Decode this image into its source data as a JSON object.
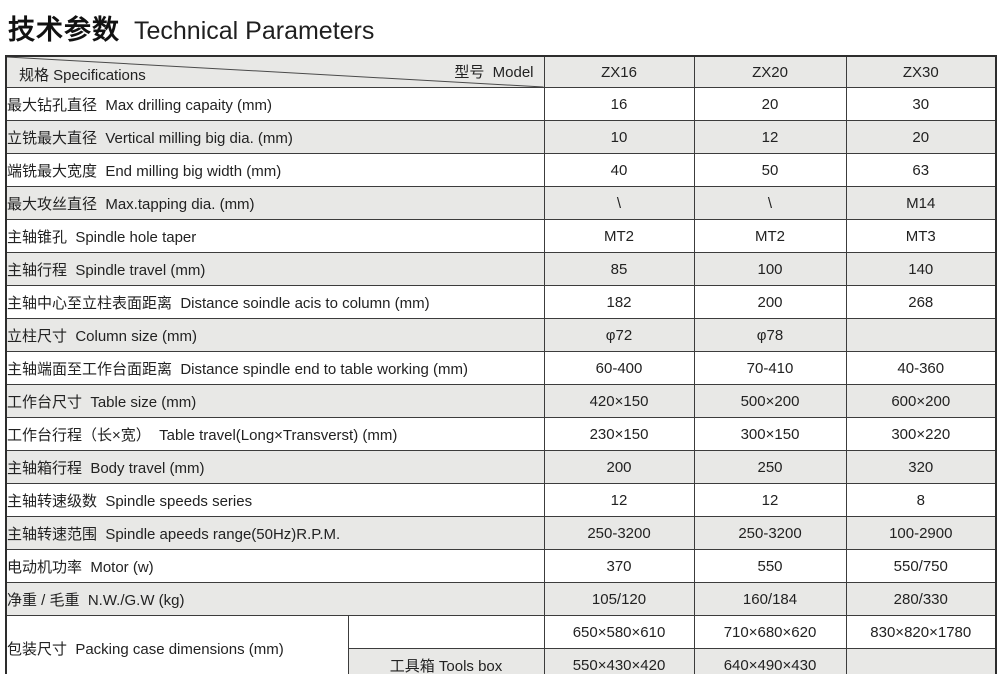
{
  "title": {
    "zh": "技术参数",
    "en": "Technical Parameters"
  },
  "table": {
    "corner": {
      "bottom_left": "规格 Specifications",
      "top_right": "型号  Model"
    },
    "models": [
      "ZX16",
      "ZX20",
      "ZX30"
    ],
    "rows": [
      {
        "label": "最大钻孔直径  Max drilling capaity (mm)",
        "values": [
          "16",
          "20",
          "30"
        ]
      },
      {
        "label": "立铣最大直径  Vertical milling big dia. (mm)",
        "values": [
          "10",
          "12",
          "20"
        ]
      },
      {
        "label": "端铣最大宽度  End milling big width (mm)",
        "values": [
          "40",
          "50",
          "63"
        ]
      },
      {
        "label": "最大攻丝直径  Max.tapping dia. (mm)",
        "values": [
          "\\",
          "\\",
          "M14"
        ]
      },
      {
        "label": "主轴锥孔  Spindle hole taper",
        "values": [
          "MT2",
          "MT2",
          "MT3"
        ]
      },
      {
        "label": "主轴行程  Spindle travel (mm)",
        "values": [
          "85",
          "100",
          "140"
        ]
      },
      {
        "label": "主轴中心至立柱表面距离  Distance soindle acis to column (mm)",
        "values": [
          "182",
          "200",
          "268"
        ]
      },
      {
        "label": "立柱尺寸  Column size (mm)",
        "values": [
          "φ72",
          "φ78",
          ""
        ]
      },
      {
        "label": "主轴端面至工作台面距离  Distance spindle end to table working (mm)",
        "values": [
          "60-400",
          "70-410",
          "40-360"
        ]
      },
      {
        "label": "工作台尺寸  Table size (mm)",
        "values": [
          "420×150",
          "500×200",
          "600×200"
        ]
      },
      {
        "label": "工作台行程（长×宽）  Table travel(Long×Transverst) (mm)",
        "values": [
          "230×150",
          "300×150",
          "300×220"
        ]
      },
      {
        "label": "主轴箱行程  Body travel (mm)",
        "values": [
          "200",
          "250",
          "320"
        ]
      },
      {
        "label": "主轴转速级数  Spindle speeds series",
        "values": [
          "12",
          "12",
          "8"
        ]
      },
      {
        "label": "主轴转速范围  Spindle apeeds range(50Hz)R.P.M.",
        "values": [
          "250-3200",
          "250-3200",
          "100-2900"
        ]
      },
      {
        "label": "电动机功率  Motor (w)",
        "values": [
          "370",
          "550",
          "550/750"
        ]
      },
      {
        "label": "净重 / 毛重  N.W./G.W (kg)",
        "values": [
          "105/120",
          "160/184",
          "280/330"
        ]
      }
    ],
    "packing": {
      "label": "包装尺寸  Packing case dimensions (mm)",
      "rows": [
        {
          "sub": "",
          "values": [
            "650×580×610",
            "710×680×620",
            "830×820×1780"
          ]
        },
        {
          "sub": "工具箱 Tools box",
          "values": [
            "550×430×420",
            "640×490×430",
            ""
          ]
        }
      ]
    }
  },
  "colors": {
    "row_alt_gray": "#e8e8e6",
    "border": "#3c3c3c",
    "text": "#222222"
  }
}
